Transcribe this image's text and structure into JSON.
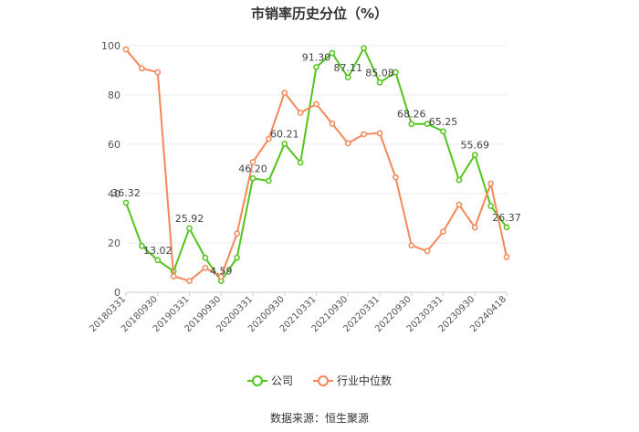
{
  "title": "市销率历史分位（%）",
  "source": "数据来源：恒生聚源",
  "legend": [
    "公司",
    "行业中位数"
  ],
  "colors": {
    "company": "#52c41a",
    "industry": "#f5875a",
    "grid": "#eeeeee",
    "axis": "#999999",
    "label": "#555555"
  },
  "chart_data": {
    "type": "line",
    "title": "市销率历史分位（%）",
    "xlabel": "",
    "ylabel": "",
    "ylim": [
      0,
      100
    ],
    "yticks": [
      0,
      20,
      40,
      60,
      80,
      100
    ],
    "grid": true,
    "legend_position": "bottom",
    "x": [
      "20180331",
      "20180630",
      "20180930",
      "20181231",
      "20190331",
      "20190630",
      "20190930",
      "20191231",
      "20200331",
      "20200630",
      "20200930",
      "20201231",
      "20210331",
      "20210630",
      "20210930",
      "20211231",
      "20220331",
      "20220630",
      "20220930",
      "20221231",
      "20230331",
      "20230630",
      "20230930",
      "20231231",
      "20240418"
    ],
    "xtick_labels": [
      "20180331",
      "20180930",
      "20190331",
      "20190930",
      "20200331",
      "20200930",
      "20210331",
      "20210930",
      "20220331",
      "20220930",
      "20230331",
      "20230930",
      "20240418"
    ],
    "series": [
      {
        "name": "公司",
        "values": [
          36.32,
          18.8,
          13.02,
          8.5,
          25.92,
          14.0,
          4.59,
          14.0,
          46.2,
          45.2,
          60.21,
          52.6,
          91.3,
          97.0,
          87.11,
          99.0,
          85.08,
          89.2,
          68.26,
          68.3,
          65.25,
          45.5,
          55.69,
          35.0,
          26.37
        ],
        "labels": [
          "36.32",
          "",
          "13.02",
          "",
          "25.92",
          "",
          "4.59",
          "",
          "46.20",
          "",
          "60.21",
          "",
          "91.30",
          "",
          "87.11",
          "",
          "85.08",
          "",
          "68.26",
          "",
          "65.25",
          "",
          "55.69",
          "",
          "26.37"
        ]
      },
      {
        "name": "行业中位数",
        "values": [
          98.5,
          90.8,
          89.2,
          6.5,
          4.6,
          9.9,
          6.3,
          23.8,
          52.8,
          62.2,
          80.9,
          72.8,
          76.3,
          68.4,
          60.4,
          64.1,
          64.5,
          46.6,
          19.0,
          16.7,
          24.6,
          35.5,
          26.3,
          44.1,
          14.3
        ],
        "labels": []
      }
    ]
  }
}
